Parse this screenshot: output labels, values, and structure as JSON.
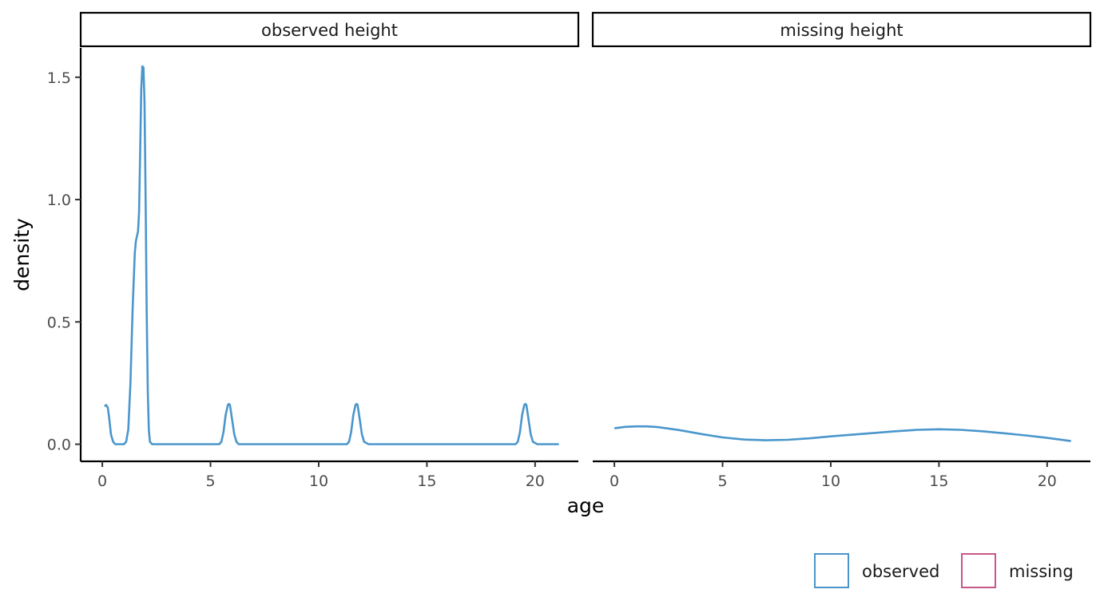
{
  "chart_data": {
    "type": "line",
    "title": "",
    "xlabel": "age",
    "ylabel": "density",
    "facets": [
      "observed height",
      "missing height"
    ],
    "xlim": [
      -1,
      22
    ],
    "ylim": [
      -0.07,
      1.62
    ],
    "x_ticks": [
      0,
      5,
      10,
      15,
      20
    ],
    "x_tick_labels": [
      "0",
      "5",
      "10",
      "15",
      "20"
    ],
    "y_ticks": [
      0.0,
      0.5,
      1.0,
      1.5
    ],
    "y_tick_labels": [
      "0.0",
      "0.5",
      "1.0",
      "1.5"
    ],
    "grid": false,
    "legend": {
      "placement": "bottom-right",
      "entries": [
        {
          "label": "observed",
          "color": "#4a96cc"
        },
        {
          "label": "missing",
          "color": "#c9578a"
        }
      ]
    },
    "series": [
      {
        "facet": "observed height",
        "color": "#4a96cc",
        "x": [
          0.1,
          0.18,
          0.25,
          0.3,
          0.35,
          0.4,
          0.5,
          0.6,
          0.8,
          1.0,
          1.1,
          1.2,
          1.3,
          1.4,
          1.5,
          1.55,
          1.6,
          1.65,
          1.7,
          1.75,
          1.8,
          1.85,
          1.9,
          1.95,
          2.0,
          2.05,
          2.1,
          2.15,
          2.2,
          2.3,
          2.4,
          2.5,
          3.0,
          4.0,
          5.0,
          5.4,
          5.5,
          5.6,
          5.7,
          5.8,
          5.85,
          5.9,
          6.0,
          6.1,
          6.2,
          6.3,
          6.5,
          8.0,
          10.0,
          11.3,
          11.4,
          11.5,
          11.6,
          11.7,
          11.75,
          11.8,
          11.9,
          12.0,
          12.1,
          12.3,
          14.0,
          16.0,
          18.0,
          19.1,
          19.2,
          19.3,
          19.4,
          19.5,
          19.55,
          19.6,
          19.7,
          19.8,
          19.9,
          20.1,
          21.1
        ],
        "y": [
          0.155,
          0.16,
          0.15,
          0.12,
          0.08,
          0.04,
          0.01,
          0.0,
          0.0,
          0.0,
          0.01,
          0.06,
          0.25,
          0.55,
          0.78,
          0.83,
          0.85,
          0.87,
          0.95,
          1.2,
          1.45,
          1.545,
          1.54,
          1.4,
          1.0,
          0.55,
          0.22,
          0.06,
          0.01,
          0.0,
          0.0,
          0.0,
          0.0,
          0.0,
          0.0,
          0.0,
          0.01,
          0.05,
          0.12,
          0.16,
          0.165,
          0.16,
          0.1,
          0.04,
          0.01,
          0.0,
          0.0,
          0.0,
          0.0,
          0.0,
          0.01,
          0.05,
          0.12,
          0.16,
          0.165,
          0.16,
          0.1,
          0.04,
          0.01,
          0.0,
          0.0,
          0.0,
          0.0,
          0.0,
          0.01,
          0.05,
          0.12,
          0.16,
          0.165,
          0.16,
          0.1,
          0.04,
          0.01,
          0.0,
          0.0
        ]
      },
      {
        "facet": "missing height",
        "color": "#4a96cc",
        "x": [
          0,
          0.5,
          1,
          1.5,
          2,
          3,
          4,
          5,
          6,
          7,
          8,
          9,
          10,
          11,
          12,
          13,
          14,
          15,
          16,
          17,
          18,
          19,
          20,
          21.1
        ],
        "y": [
          0.065,
          0.071,
          0.073,
          0.073,
          0.07,
          0.058,
          0.042,
          0.028,
          0.019,
          0.016,
          0.018,
          0.024,
          0.032,
          0.039,
          0.046,
          0.053,
          0.059,
          0.061,
          0.059,
          0.053,
          0.045,
          0.036,
          0.026,
          0.013
        ]
      }
    ]
  }
}
